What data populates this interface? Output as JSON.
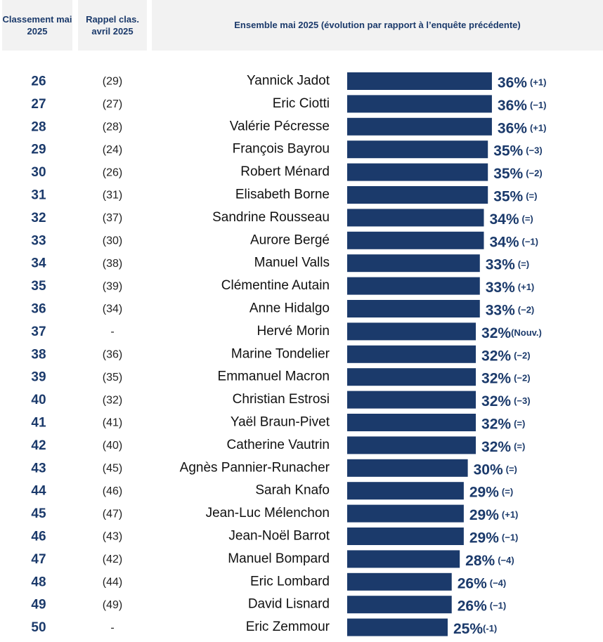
{
  "header": {
    "col1": "Classement mai 2025",
    "col2": "Rappel clas. avril 2025",
    "col3": "Ensemble mai 2025 (évolution par rapport à l’enquête précédente)"
  },
  "colors": {
    "bar": "#1b3a6b",
    "text_accent": "#1b3a6b",
    "header_bg": "#f2f2f2"
  },
  "chart_data": {
    "type": "bar",
    "orientation": "horizontal",
    "title": "Ensemble mai 2025 (évolution par rapport à l’enquête précédente)",
    "value_unit": "%",
    "rows": [
      {
        "rank": "26",
        "prev": "(29)",
        "name": "Yannick Jadot",
        "value": 36,
        "evo": "(+1)"
      },
      {
        "rank": "27",
        "prev": "(27)",
        "name": "Eric Ciotti",
        "value": 36,
        "evo": "(−1)"
      },
      {
        "rank": "28",
        "prev": "(28)",
        "name": "Valérie Pécresse",
        "value": 36,
        "evo": "(+1)"
      },
      {
        "rank": "29",
        "prev": "(24)",
        "name": "François Bayrou",
        "value": 35,
        "evo": "(−3)"
      },
      {
        "rank": "30",
        "prev": "(26)",
        "name": "Robert Ménard",
        "value": 35,
        "evo": "(−2)"
      },
      {
        "rank": "31",
        "prev": "(31)",
        "name": "Elisabeth Borne",
        "value": 35,
        "evo": "(=)"
      },
      {
        "rank": "32",
        "prev": "(37)",
        "name": "Sandrine Rousseau",
        "value": 34,
        "evo": "(=)"
      },
      {
        "rank": "33",
        "prev": "(30)",
        "name": "Aurore Bergé",
        "value": 34,
        "evo": "(−1)"
      },
      {
        "rank": "34",
        "prev": "(38)",
        "name": "Manuel Valls",
        "value": 33,
        "evo": "(=)"
      },
      {
        "rank": "35",
        "prev": "(39)",
        "name": "Clémentine Autain",
        "value": 33,
        "evo": "(+1)"
      },
      {
        "rank": "36",
        "prev": "(34)",
        "name": "Anne Hidalgo",
        "value": 33,
        "evo": "(−2)"
      },
      {
        "rank": "37",
        "prev": "-",
        "name": "Hervé Morin",
        "value": 32,
        "evo": "(Nouv.)"
      },
      {
        "rank": "38",
        "prev": "(36)",
        "name": "Marine Tondelier",
        "value": 32,
        "evo": "(−2)"
      },
      {
        "rank": "39",
        "prev": "(35)",
        "name": "Emmanuel Macron",
        "value": 32,
        "evo": "(−2)"
      },
      {
        "rank": "40",
        "prev": "(32)",
        "name": "Christian Estrosi",
        "value": 32,
        "evo": "(−3)"
      },
      {
        "rank": "41",
        "prev": "(41)",
        "name": "Yaël Braun-Pivet",
        "value": 32,
        "evo": "(=)"
      },
      {
        "rank": "42",
        "prev": "(40)",
        "name": "Catherine Vautrin",
        "value": 32,
        "evo": "(=)"
      },
      {
        "rank": "43",
        "prev": "(45)",
        "name": "Agnès Pannier-Runacher",
        "value": 30,
        "evo": "(=)"
      },
      {
        "rank": "44",
        "prev": "(46)",
        "name": "Sarah Knafo",
        "value": 29,
        "evo": "(=)"
      },
      {
        "rank": "45",
        "prev": "(47)",
        "name": "Jean-Luc Mélenchon",
        "value": 29,
        "evo": "(+1)"
      },
      {
        "rank": "46",
        "prev": "(43)",
        "name": "Jean-Noël Barrot",
        "value": 29,
        "evo": "(−1)"
      },
      {
        "rank": "47",
        "prev": "(42)",
        "name": "Manuel Bompard",
        "value": 28,
        "evo": "(−4)"
      },
      {
        "rank": "48",
        "prev": "(44)",
        "name": "Eric Lombard",
        "value": 26,
        "evo": "(−4)"
      },
      {
        "rank": "49",
        "prev": "(49)",
        "name": "David Lisnard",
        "value": 26,
        "evo": "(−1)"
      },
      {
        "rank": "50",
        "prev": "-",
        "name": "Eric Zemmour",
        "value": 25,
        "evo": "(-1)"
      }
    ]
  }
}
